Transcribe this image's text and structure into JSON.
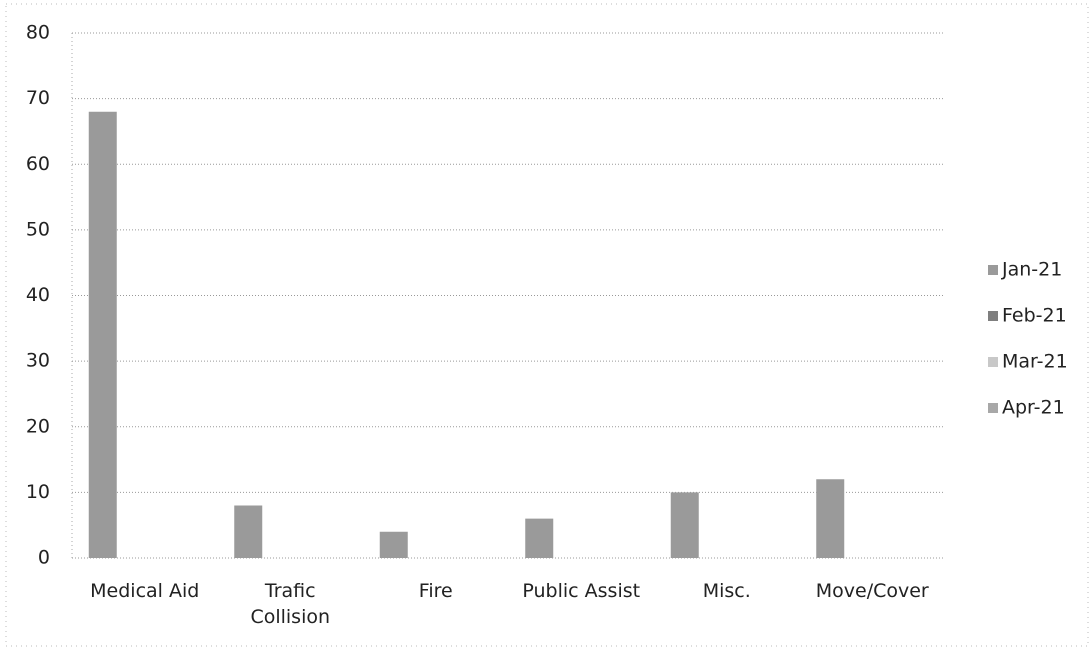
{
  "chart_data": {
    "type": "bar",
    "categories": [
      "Medical Aid",
      "Trafic Collision",
      "Fire",
      "Public Assist",
      "Misc.",
      "Move/Cover"
    ],
    "series": [
      {
        "name": "Jan-21",
        "color": "#9a9a9a",
        "values": [
          68,
          8,
          4,
          6,
          10,
          12
        ]
      },
      {
        "name": "Feb-21",
        "color": "#7f7f7f",
        "values": [
          null,
          null,
          null,
          null,
          null,
          null
        ]
      },
      {
        "name": "Mar-21",
        "color": "#c8c8c8",
        "values": [
          null,
          null,
          null,
          null,
          null,
          null
        ]
      },
      {
        "name": "Apr-21",
        "color": "#a8a8a8",
        "values": [
          null,
          null,
          null,
          null,
          null,
          null
        ]
      }
    ],
    "ylim": [
      0,
      80
    ],
    "yticks": [
      0,
      10,
      20,
      30,
      40,
      50,
      60,
      70,
      80
    ],
    "grid": true,
    "legend": "right"
  }
}
